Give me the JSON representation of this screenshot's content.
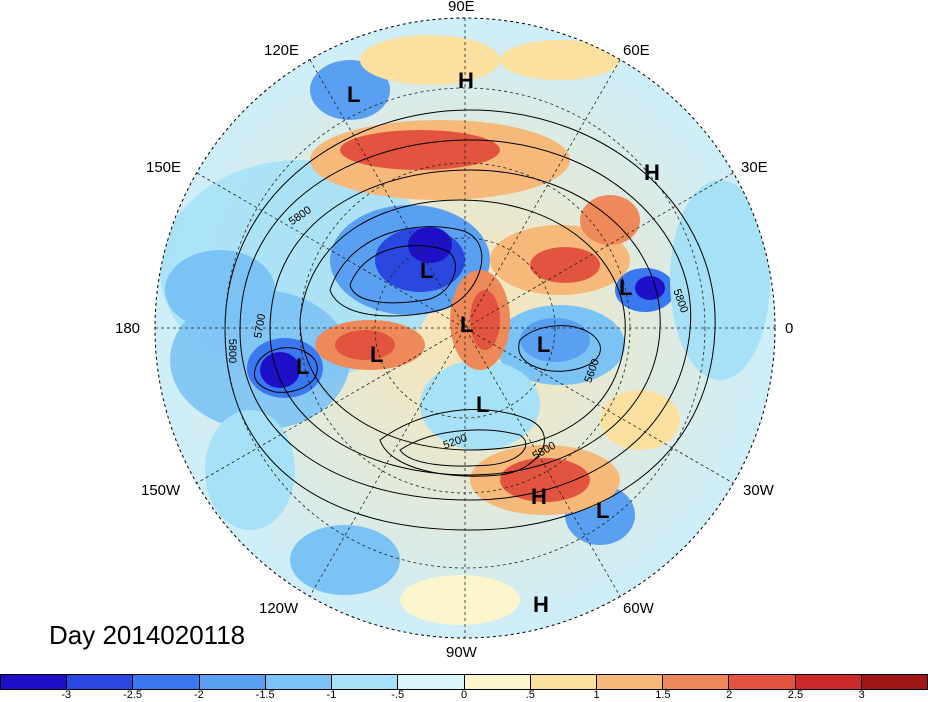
{
  "date_label": "Day 2014020118",
  "longitude_labels": {
    "north": "90E",
    "north_right": "60E",
    "north_left": "120E",
    "upper_left": "150E",
    "upper_right": "30E",
    "left": "180",
    "right": "0",
    "lower_left": "150W",
    "lower_right": "30W",
    "south_left": "120W",
    "south_right": "60W",
    "south": "90W"
  },
  "contour_labels": [
    "5800",
    "5700",
    "5800",
    "5600",
    "5800",
    "5200",
    "5800",
    "5800"
  ],
  "pressure_centers": [
    {
      "type": "L",
      "lon": "~115E",
      "lat": "~45"
    },
    {
      "type": "H",
      "lon": "~90E",
      "lat": "~45"
    },
    {
      "type": "H",
      "lon": "~40E",
      "lat": "~50"
    },
    {
      "type": "L",
      "lon": "~20E",
      "lat": "~70"
    },
    {
      "type": "L",
      "lon": "~90E",
      "lat": "~70"
    },
    {
      "type": "L",
      "lon": "~90E",
      "lat": "~85"
    },
    {
      "type": "L",
      "lon": "~170W",
      "lat": "~75"
    },
    {
      "type": "L",
      "lon": "~160W",
      "lat": "~60"
    },
    {
      "type": "L",
      "lon": "~30W",
      "lat": "~70"
    },
    {
      "type": "L",
      "lon": "~80W",
      "lat": "~70"
    },
    {
      "type": "H",
      "lon": "~60W",
      "lat": "~40"
    },
    {
      "type": "L",
      "lon": "~40W",
      "lat": "~30"
    },
    {
      "type": "H",
      "lon": "~80W",
      "lat": "~20"
    }
  ],
  "colorbar": {
    "ticks": [
      "-3",
      "-2.5",
      "-2",
      "-1.5",
      "-1",
      "-.5",
      "0",
      ".5",
      "1",
      "1.5",
      "2",
      "2.5",
      "3"
    ],
    "colors": [
      "#1d10c8",
      "#2a47e0",
      "#3a78ef",
      "#5aa0f2",
      "#7cc3f5",
      "#a6e1f7",
      "#d8f5fb",
      "#fdf6cc",
      "#fbe0a0",
      "#f6b97a",
      "#ee8a5a",
      "#e35440",
      "#cc2a2a",
      "#a01515"
    ]
  }
}
